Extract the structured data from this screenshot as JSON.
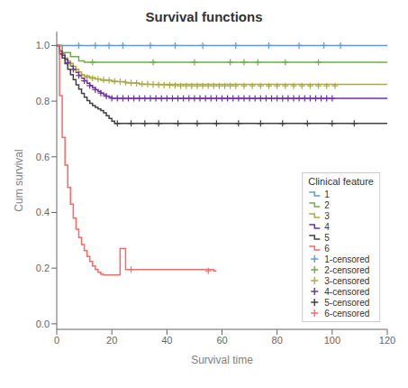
{
  "chart_data": {
    "type": "line",
    "title": "Survival functions",
    "x_label": "Survival time",
    "y_label": "Cum survival",
    "xlim": [
      0,
      120
    ],
    "ylim": [
      -0.02,
      1.05
    ],
    "xticks": [
      0,
      20,
      40,
      60,
      80,
      100,
      120
    ],
    "yticks": [
      {
        "value": 0.0,
        "label": "0.0"
      },
      0.2,
      0.4,
      0.6,
      0.8,
      {
        "value": 1.0,
        "label": "1.0"
      }
    ],
    "grid": false,
    "legend": "lower right",
    "legend_title": "Clinical feature",
    "series": [
      {
        "name": "1",
        "type": "step",
        "color": "#5b9bd5",
        "x": [
          0,
          100,
          120
        ],
        "values": [
          1.0,
          1.0,
          1.0
        ]
      },
      {
        "name": "2",
        "type": "step",
        "color": "#70ad47",
        "x": [
          0,
          2,
          5,
          8,
          10,
          120
        ],
        "values": [
          1.0,
          0.975,
          0.96,
          0.945,
          0.94,
          0.94
        ]
      },
      {
        "name": "3",
        "type": "step",
        "color": "#aaaa44",
        "x": [
          0,
          1,
          2,
          3,
          4,
          5,
          6,
          7,
          8,
          9,
          10,
          12,
          14,
          16,
          20,
          25,
          30,
          120
        ],
        "values": [
          1.0,
          0.98,
          0.97,
          0.955,
          0.945,
          0.935,
          0.925,
          0.915,
          0.905,
          0.895,
          0.89,
          0.885,
          0.88,
          0.875,
          0.87,
          0.865,
          0.86,
          0.86
        ]
      },
      {
        "name": "4",
        "type": "step",
        "color": "#7030a0",
        "x": [
          0,
          1,
          2,
          3,
          4,
          5,
          6,
          7,
          8,
          9,
          10,
          11,
          12,
          13,
          14,
          15,
          16,
          17,
          18,
          19,
          20,
          21,
          22,
          120
        ],
        "values": [
          1.0,
          0.98,
          0.965,
          0.95,
          0.938,
          0.926,
          0.914,
          0.903,
          0.892,
          0.882,
          0.873,
          0.864,
          0.856,
          0.848,
          0.841,
          0.835,
          0.829,
          0.823,
          0.818,
          0.814,
          0.81,
          0.81,
          0.81,
          0.81
        ]
      },
      {
        "name": "5",
        "type": "step",
        "color": "#404040",
        "x": [
          0,
          1,
          2,
          3,
          4,
          5,
          6,
          7,
          8,
          9,
          10,
          11,
          12,
          13,
          14,
          15,
          16,
          17,
          18,
          19,
          20,
          21,
          22,
          120
        ],
        "values": [
          1.0,
          0.97,
          0.955,
          0.935,
          0.915,
          0.895,
          0.877,
          0.859,
          0.843,
          0.828,
          0.814,
          0.802,
          0.792,
          0.784,
          0.778,
          0.772,
          0.766,
          0.758,
          0.748,
          0.738,
          0.728,
          0.72,
          0.72,
          0.72
        ]
      },
      {
        "name": "6",
        "type": "step",
        "color": "#ff6666",
        "x": [
          0,
          1,
          2,
          3,
          4,
          5,
          6,
          7,
          8,
          9,
          10,
          11,
          12,
          13,
          14,
          15,
          16,
          17,
          18,
          19,
          20,
          21,
          22,
          23,
          24,
          25,
          26,
          27,
          28,
          57,
          58
        ],
        "values": [
          1.0,
          0.82,
          0.67,
          0.57,
          0.49,
          0.43,
          0.38,
          0.34,
          0.31,
          0.285,
          0.263,
          0.242,
          0.224,
          0.208,
          0.195,
          0.185,
          0.178,
          0.175,
          0.175,
          0.175,
          0.175,
          0.175,
          0.175,
          0.27,
          0.27,
          0.195,
          0.195,
          0.195,
          0.195,
          0.19,
          0.19
        ]
      },
      {
        "name": "1-censored",
        "type": "scatter",
        "marker": "plus",
        "color": "#5b9bd5",
        "x": [
          8,
          14,
          19,
          24,
          34,
          43,
          53,
          65,
          77,
          88,
          97,
          103
        ],
        "values": [
          1.0,
          1.0,
          1.0,
          1.0,
          1.0,
          1.0,
          1.0,
          1.0,
          1.0,
          1.0,
          1.0,
          1.0
        ]
      },
      {
        "name": "2-censored",
        "type": "scatter",
        "marker": "plus",
        "color": "#70ad47",
        "x": [
          13,
          35,
          50,
          63,
          68,
          73,
          83,
          95
        ],
        "values": [
          0.94,
          0.94,
          0.94,
          0.94,
          0.94,
          0.94,
          0.94,
          0.94
        ]
      },
      {
        "name": "3-censored",
        "type": "scatter",
        "marker": "plus",
        "color": "#aaaa44",
        "x": [
          5,
          7,
          9,
          11,
          13,
          15,
          17,
          19,
          21,
          23,
          25,
          27,
          29,
          31,
          33,
          35,
          37,
          39,
          41,
          43,
          45,
          47,
          49,
          51,
          53,
          55,
          57,
          59,
          61,
          63,
          65,
          68,
          71,
          74,
          77,
          80,
          83,
          86,
          89,
          92,
          95,
          98,
          101
        ],
        "values": [
          0.935,
          0.915,
          0.895,
          0.885,
          0.882,
          0.879,
          0.877,
          0.875,
          0.872,
          0.87,
          0.868,
          0.866,
          0.864,
          0.862,
          0.861,
          0.86,
          0.859,
          0.858,
          0.857,
          0.856,
          0.855,
          0.855,
          0.855,
          0.855,
          0.855,
          0.855,
          0.855,
          0.855,
          0.855,
          0.855,
          0.855,
          0.855,
          0.855,
          0.855,
          0.855,
          0.855,
          0.855,
          0.855,
          0.855,
          0.855,
          0.855,
          0.855,
          0.855
        ]
      },
      {
        "name": "4-censored",
        "type": "scatter",
        "marker": "plus",
        "color": "#7030a0",
        "x": [
          4,
          6,
          8,
          10,
          12,
          14,
          16,
          18,
          20,
          22,
          24,
          26,
          28,
          30,
          32,
          34,
          36,
          38,
          40,
          42,
          44,
          46,
          48,
          50,
          52,
          54,
          56,
          58,
          60,
          62,
          64,
          66,
          68,
          70,
          72,
          74,
          76,
          78,
          80,
          82,
          84,
          86,
          88,
          90,
          92,
          94,
          96,
          98,
          100
        ],
        "values": [
          0.938,
          0.914,
          0.892,
          0.873,
          0.856,
          0.841,
          0.829,
          0.818,
          0.81,
          0.81,
          0.81,
          0.81,
          0.81,
          0.81,
          0.81,
          0.81,
          0.81,
          0.81,
          0.81,
          0.81,
          0.81,
          0.81,
          0.81,
          0.81,
          0.81,
          0.81,
          0.81,
          0.81,
          0.81,
          0.81,
          0.81,
          0.81,
          0.81,
          0.81,
          0.81,
          0.81,
          0.81,
          0.81,
          0.81,
          0.81,
          0.81,
          0.81,
          0.81,
          0.81,
          0.81,
          0.81,
          0.81,
          0.81,
          0.81
        ]
      },
      {
        "name": "5-censored",
        "type": "scatter",
        "marker": "plus",
        "color": "#404040",
        "x": [
          22,
          27,
          32,
          37,
          44,
          51,
          58,
          66,
          74,
          82,
          91,
          100,
          108
        ],
        "values": [
          0.72,
          0.72,
          0.72,
          0.72,
          0.72,
          0.72,
          0.72,
          0.72,
          0.72,
          0.72,
          0.72,
          0.72,
          0.72
        ]
      },
      {
        "name": "6-censored",
        "type": "scatter",
        "marker": "plus",
        "color": "#ff6666",
        "x": [
          27,
          55
        ],
        "values": [
          0.195,
          0.19
        ]
      }
    ]
  }
}
